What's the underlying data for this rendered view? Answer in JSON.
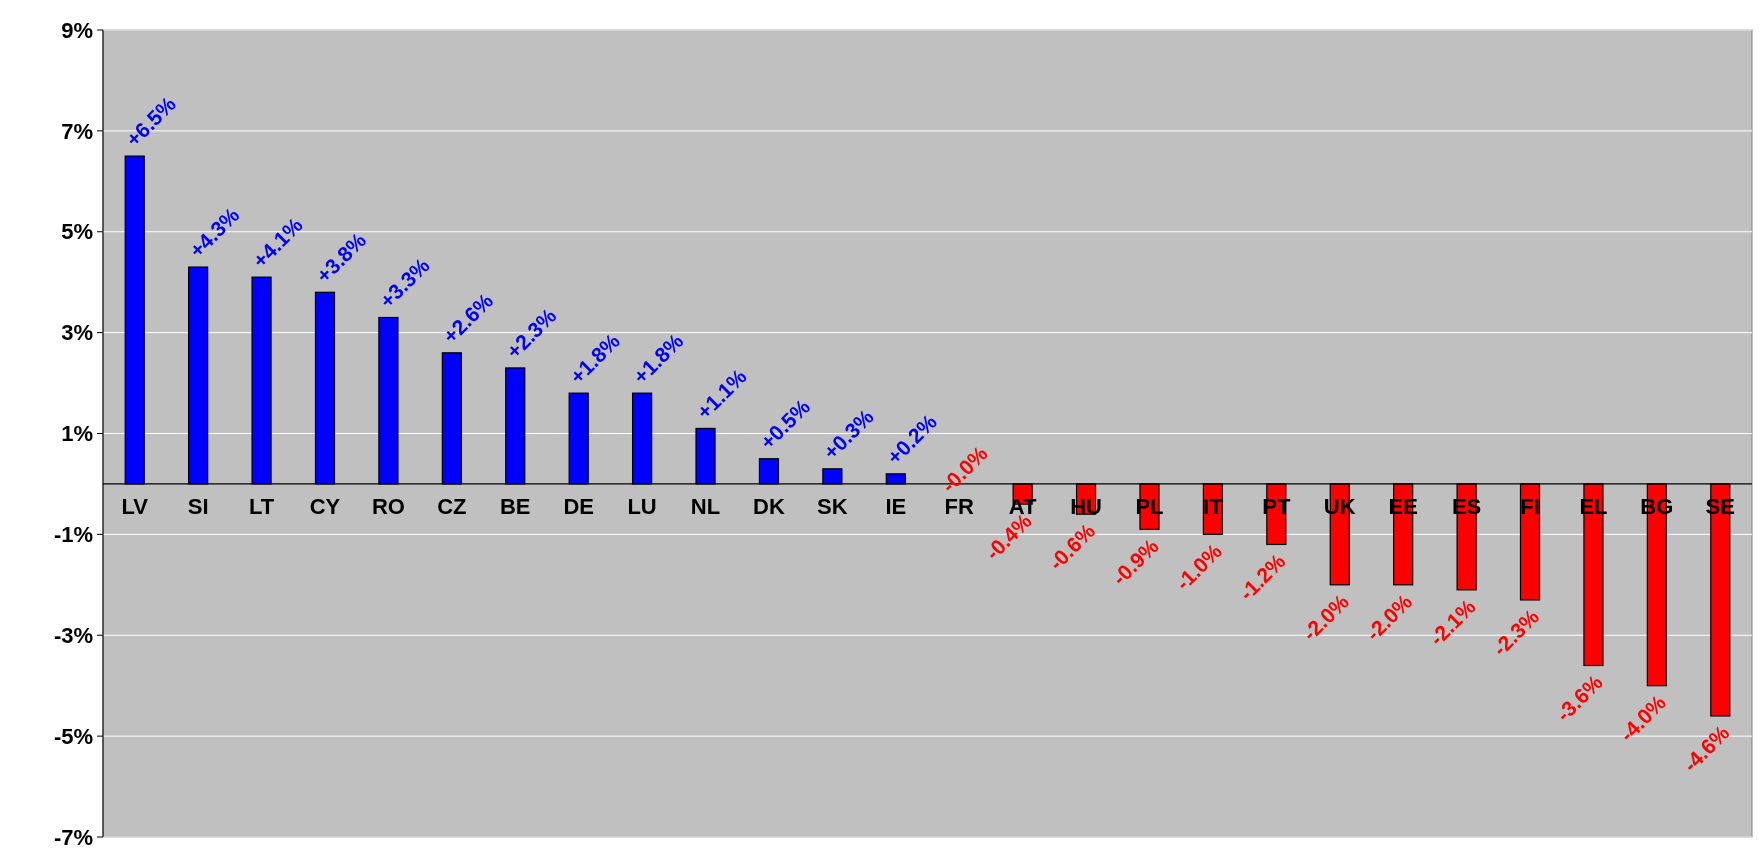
{
  "chart_data": {
    "type": "bar",
    "categories": [
      "LV",
      "SI",
      "LT",
      "CY",
      "RO",
      "CZ",
      "BE",
      "DE",
      "LU",
      "NL",
      "DK",
      "SK",
      "IE",
      "FR",
      "AT",
      "HU",
      "PL",
      "IT",
      "PT",
      "UK",
      "EE",
      "ES",
      "FI",
      "EL",
      "BG",
      "SE"
    ],
    "values": [
      6.5,
      4.3,
      4.1,
      3.8,
      3.3,
      2.6,
      2.3,
      1.8,
      1.8,
      1.1,
      0.5,
      0.3,
      0.2,
      0,
      -0.4,
      -0.6,
      -0.9,
      -1.0,
      -1.2,
      -2.0,
      -2.0,
      -2.1,
      -2.3,
      -3.6,
      -4.0,
      -4.6
    ],
    "colors": [
      "#0000ff",
      "#0000ff",
      "#0000ff",
      "#0000ff",
      "#0000ff",
      "#0000ff",
      "#0000ff",
      "#0000ff",
      "#0000ff",
      "#0000ff",
      "#0000ff",
      "#0000ff",
      "#0000ff",
      "#ff0000",
      "#ff0000",
      "#ff0000",
      "#ff0000",
      "#ff0000",
      "#ff0000",
      "#ff0000",
      "#ff0000",
      "#ff0000",
      "#ff0000",
      "#ff0000",
      "#ff0000",
      "#ff0000"
    ],
    "value_labels": [
      "+6.5%",
      "+4.3%",
      "+4.1%",
      "+3.8%",
      "+3.3%",
      "+2.6%",
      "+2.3%",
      "+1.8%",
      "+1.8%",
      "+1.1%",
      "+0.5%",
      "+0.3%",
      "+0.2%",
      "-0.0%",
      "-0.4%",
      "-0.6%",
      "-0.9%",
      "-1.0%",
      "-1.2%",
      "-2.0%",
      "-2.0%",
      "-2.1%",
      "-2.3%",
      "-3.6%",
      "-4.0%",
      "-4.6%"
    ],
    "ylim": [
      -7,
      9
    ],
    "yticks": [
      {
        "value": 9,
        "label": "9%"
      },
      {
        "value": 7,
        "label": "7%"
      },
      {
        "value": 5,
        "label": "5%"
      },
      {
        "value": 3,
        "label": "3%"
      },
      {
        "value": 1,
        "label": "1%"
      },
      {
        "value": -1,
        "label": "-1%"
      },
      {
        "value": -3,
        "label": "-3%"
      },
      {
        "value": -5,
        "label": "-5%"
      },
      {
        "value": -7,
        "label": "-7%"
      }
    ],
    "grid": "y"
  }
}
